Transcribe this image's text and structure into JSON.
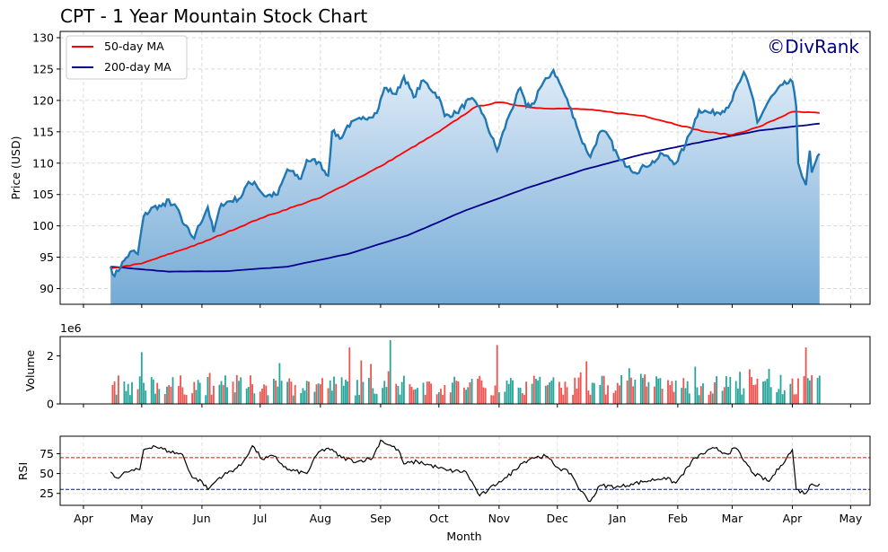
{
  "page": {
    "title": "CPT - 1 Year Mountain Stock Chart",
    "watermark": "©DivRank"
  },
  "legend": {
    "ma50": "50-day MA",
    "ma200": "200-day MA"
  },
  "colors": {
    "price": "#1f77b4",
    "ma50": "#ff0000",
    "ma200": "#00008b",
    "vol_up": "#26a69a",
    "vol_down": "#ef5350",
    "rsi": "#000000",
    "rsi_over": "#ff0000",
    "rsi_under": "#0000ff"
  },
  "chart_data": [
    {
      "type": "area",
      "title": "CPT - 1 Year Mountain Stock Chart",
      "ylabel": "Price (USD)",
      "ylim": [
        87.5,
        131
      ],
      "yticks": [
        90,
        95,
        100,
        105,
        110,
        115,
        120,
        125,
        130
      ],
      "grid": true,
      "legend_position": "top-left",
      "price_keypoints": [
        [
          "2024-04-15",
          93.5
        ],
        [
          "2024-04-17",
          92.0
        ],
        [
          "2024-04-22",
          94.5
        ],
        [
          "2024-04-26",
          96.0
        ],
        [
          "2024-04-29",
          95.5
        ],
        [
          "2024-05-02",
          101.5
        ],
        [
          "2024-05-07",
          103.0
        ],
        [
          "2024-05-13",
          103.2
        ],
        [
          "2024-05-14",
          104.2
        ],
        [
          "2024-05-20",
          102.5
        ],
        [
          "2024-05-22",
          100.5
        ],
        [
          "2024-05-28",
          98.0
        ],
        [
          "2024-05-29",
          99.0
        ],
        [
          "2024-06-04",
          103.0
        ],
        [
          "2024-06-07",
          99.0
        ],
        [
          "2024-06-11",
          103.5
        ],
        [
          "2024-06-21",
          104.5
        ],
        [
          "2024-06-24",
          106.5
        ],
        [
          "2024-06-28",
          107.0
        ],
        [
          "2024-07-03",
          104.8
        ],
        [
          "2024-07-10",
          105.0
        ],
        [
          "2024-07-15",
          109.0
        ],
        [
          "2024-07-22",
          107.5
        ],
        [
          "2024-07-25",
          110.5
        ],
        [
          "2024-07-31",
          110.2
        ],
        [
          "2024-08-05",
          108.0
        ],
        [
          "2024-08-07",
          115.0
        ],
        [
          "2024-08-12",
          114.0
        ],
        [
          "2024-08-15",
          116.0
        ],
        [
          "2024-08-22",
          117.0
        ],
        [
          "2024-08-30",
          118.0
        ],
        [
          "2024-09-03",
          122.0
        ],
        [
          "2024-09-09",
          121.0
        ],
        [
          "2024-09-13",
          123.8
        ],
        [
          "2024-09-18",
          120.5
        ],
        [
          "2024-09-23",
          123.2
        ],
        [
          "2024-10-01",
          120.5
        ],
        [
          "2024-10-04",
          117.5
        ],
        [
          "2024-10-10",
          118.0
        ],
        [
          "2024-10-17",
          120.2
        ],
        [
          "2024-10-22",
          119.0
        ],
        [
          "2024-10-31",
          112.0
        ],
        [
          "2024-11-06",
          117.5
        ],
        [
          "2024-11-12",
          122.0
        ],
        [
          "2024-11-15",
          119.0
        ],
        [
          "2024-11-19",
          119.5
        ],
        [
          "2024-11-21",
          121.5
        ],
        [
          "2024-11-29",
          124.8
        ],
        [
          "2024-12-04",
          121.5
        ],
        [
          "2024-12-10",
          117.0
        ],
        [
          "2024-12-13",
          114.0
        ],
        [
          "2024-12-18",
          111.0
        ],
        [
          "2024-12-23",
          115.0
        ],
        [
          "2024-12-27",
          114.5
        ],
        [
          "2025-01-02",
          110.5
        ],
        [
          "2025-01-07",
          109.5
        ],
        [
          "2025-01-10",
          108.5
        ],
        [
          "2025-01-15",
          109.5
        ],
        [
          "2025-01-21",
          110.5
        ],
        [
          "2025-01-24",
          111.5
        ],
        [
          "2025-01-31",
          110.0
        ],
        [
          "2025-02-05",
          113.0
        ],
        [
          "2025-02-12",
          118.5
        ],
        [
          "2025-02-18",
          118.0
        ],
        [
          "2025-02-24",
          118.3
        ],
        [
          "2025-02-28",
          119.5
        ],
        [
          "2025-03-05",
          123.0
        ],
        [
          "2025-03-07",
          124.5
        ],
        [
          "2025-03-12",
          120.0
        ],
        [
          "2025-03-14",
          116.5
        ],
        [
          "2025-03-20",
          120.0
        ],
        [
          "2025-03-27",
          122.5
        ],
        [
          "2025-04-01",
          123.0
        ],
        [
          "2025-04-03",
          119.0
        ],
        [
          "2025-04-04",
          110.0
        ],
        [
          "2025-04-08",
          106.5
        ],
        [
          "2025-04-10",
          112.0
        ],
        [
          "2025-04-11",
          108.5
        ],
        [
          "2025-04-15",
          111.5
        ]
      ],
      "ma50_keypoints": [
        [
          "2024-04-15",
          93.2
        ],
        [
          "2024-05-01",
          94.0
        ],
        [
          "2024-06-01",
          97.3
        ],
        [
          "2024-07-01",
          101.2
        ],
        [
          "2024-08-01",
          104.5
        ],
        [
          "2024-09-01",
          109.5
        ],
        [
          "2024-10-01",
          115.0
        ],
        [
          "2024-10-20",
          119.0
        ],
        [
          "2024-11-01",
          119.7
        ],
        [
          "2024-11-20",
          118.8
        ],
        [
          "2024-12-15",
          118.6
        ],
        [
          "2025-01-15",
          117.5
        ],
        [
          "2025-02-15",
          115.0
        ],
        [
          "2025-03-01",
          114.5
        ],
        [
          "2025-03-15",
          115.8
        ],
        [
          "2025-04-01",
          118.2
        ],
        [
          "2025-04-15",
          118.0
        ]
      ],
      "ma200_keypoints": [
        [
          "2024-04-15",
          93.5
        ],
        [
          "2024-05-15",
          92.7
        ],
        [
          "2024-06-15",
          92.8
        ],
        [
          "2024-07-15",
          93.5
        ],
        [
          "2024-08-15",
          95.5
        ],
        [
          "2024-09-15",
          98.5
        ],
        [
          "2024-10-15",
          102.5
        ],
        [
          "2024-11-15",
          106.0
        ],
        [
          "2024-12-15",
          109.0
        ],
        [
          "2025-01-15",
          111.5
        ],
        [
          "2025-02-15",
          113.5
        ],
        [
          "2025-03-15",
          115.2
        ],
        [
          "2025-04-15",
          116.3
        ]
      ]
    },
    {
      "type": "bar",
      "ylabel": "Volume",
      "scale_label": "1e6",
      "ylim": [
        0,
        2.8
      ],
      "yticks": [
        0,
        2
      ],
      "grid": false,
      "volume_spikes": [
        [
          "2024-05-01",
          2.15
        ],
        [
          "2024-08-16",
          2.35
        ],
        [
          "2024-09-06",
          2.65
        ],
        [
          "2024-10-31",
          2.45
        ],
        [
          "2025-04-08",
          2.35
        ]
      ]
    },
    {
      "type": "line",
      "ylabel": "RSI",
      "xlabel": "Month",
      "ylim": [
        10,
        97
      ],
      "yticks": [
        25,
        50,
        75
      ],
      "overbought": 70,
      "oversold": 30,
      "grid": true,
      "rsi_keypoints": [
        [
          "2024-04-15",
          52
        ],
        [
          "2024-04-19",
          44
        ],
        [
          "2024-04-23",
          52
        ],
        [
          "2024-04-30",
          55
        ],
        [
          "2024-05-02",
          80
        ],
        [
          "2024-05-07",
          85
        ],
        [
          "2024-05-15",
          78
        ],
        [
          "2024-05-22",
          74
        ],
        [
          "2024-05-27",
          45
        ],
        [
          "2024-06-01",
          40
        ],
        [
          "2024-06-04",
          30
        ],
        [
          "2024-06-10",
          45
        ],
        [
          "2024-06-21",
          60
        ],
        [
          "2024-06-27",
          85
        ],
        [
          "2024-07-02",
          68
        ],
        [
          "2024-07-08",
          72
        ],
        [
          "2024-07-15",
          55
        ],
        [
          "2024-07-25",
          50
        ],
        [
          "2024-07-31",
          77
        ],
        [
          "2024-08-05",
          82
        ],
        [
          "2024-08-12",
          70
        ],
        [
          "2024-08-20",
          65
        ],
        [
          "2024-08-28",
          70
        ],
        [
          "2024-09-01",
          92
        ],
        [
          "2024-09-10",
          80
        ],
        [
          "2024-09-13",
          62
        ],
        [
          "2024-09-20",
          65
        ],
        [
          "2024-09-30",
          58
        ],
        [
          "2024-10-05",
          54
        ],
        [
          "2024-10-15",
          52
        ],
        [
          "2024-10-22",
          22
        ],
        [
          "2024-10-26",
          28
        ],
        [
          "2024-11-01",
          40
        ],
        [
          "2024-11-05",
          45
        ],
        [
          "2024-11-12",
          62
        ],
        [
          "2024-11-18",
          70
        ],
        [
          "2024-11-25",
          72
        ],
        [
          "2024-12-01",
          58
        ],
        [
          "2024-12-08",
          50
        ],
        [
          "2024-12-13",
          28
        ],
        [
          "2024-12-18",
          15
        ],
        [
          "2024-12-23",
          35
        ],
        [
          "2025-01-02",
          33
        ],
        [
          "2025-01-08",
          37
        ],
        [
          "2025-01-15",
          40
        ],
        [
          "2025-01-25",
          45
        ],
        [
          "2025-01-31",
          38
        ],
        [
          "2025-02-10",
          70
        ],
        [
          "2025-02-20",
          82
        ],
        [
          "2025-02-26",
          75
        ],
        [
          "2025-03-03",
          82
        ],
        [
          "2025-03-06",
          70
        ],
        [
          "2025-03-12",
          50
        ],
        [
          "2025-03-20",
          40
        ],
        [
          "2025-03-26",
          60
        ],
        [
          "2025-04-01",
          80
        ],
        [
          "2025-04-03",
          30
        ],
        [
          "2025-04-08",
          25
        ],
        [
          "2025-04-10",
          35
        ],
        [
          "2025-04-15",
          37
        ]
      ]
    }
  ],
  "x_axis": {
    "label": "Month",
    "ticks": [
      {
        "date": "2024-04-01",
        "label": "Apr"
      },
      {
        "date": "2024-05-01",
        "label": "May"
      },
      {
        "date": "2024-06-01",
        "label": "Jun"
      },
      {
        "date": "2024-07-01",
        "label": "Jul"
      },
      {
        "date": "2024-08-01",
        "label": "Aug"
      },
      {
        "date": "2024-09-01",
        "label": "Sep"
      },
      {
        "date": "2024-10-01",
        "label": "Oct"
      },
      {
        "date": "2024-11-01",
        "label": "Nov"
      },
      {
        "date": "2024-12-01",
        "label": "Dec"
      },
      {
        "date": "2025-01-01",
        "label": "Jan"
      },
      {
        "date": "2025-02-01",
        "label": "Feb"
      },
      {
        "date": "2025-03-01",
        "label": "Mar"
      },
      {
        "date": "2025-04-01",
        "label": "Apr"
      },
      {
        "date": "2025-05-01",
        "label": "May"
      }
    ]
  }
}
